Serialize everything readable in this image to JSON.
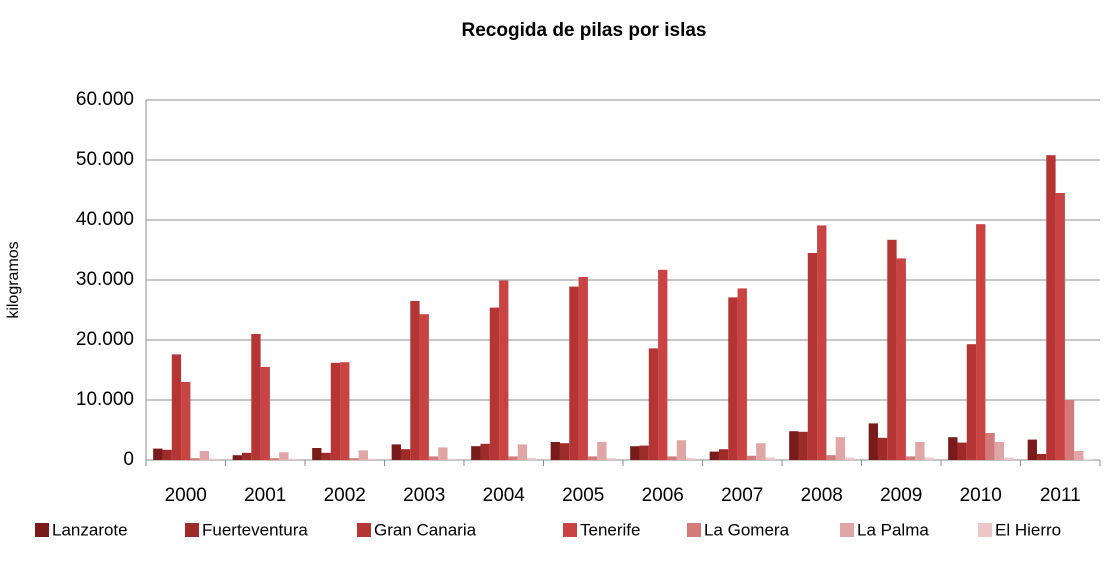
{
  "chart_data": {
    "type": "bar",
    "title": "Recogida de pilas por islas",
    "y_label": "kilogramos",
    "categories": [
      "2000",
      "2001",
      "2002",
      "2003",
      "2004",
      "2005",
      "2006",
      "2007",
      "2008",
      "2009",
      "2010",
      "2011"
    ],
    "series": [
      {
        "name": "Lanzarote",
        "color": "#7a1b1b",
        "values": [
          1900,
          800,
          2000,
          2600,
          2300,
          3000,
          2300,
          1400,
          4800,
          6100,
          3800,
          3400
        ]
      },
      {
        "name": "Fuerteventura",
        "color": "#9e2a2a",
        "values": [
          1700,
          1200,
          1200,
          1800,
          2700,
          2800,
          2400,
          1800,
          4700,
          3700,
          2900,
          1000
        ]
      },
      {
        "name": "Gran Canaria",
        "color": "#b53434",
        "values": [
          17600,
          21000,
          16200,
          26500,
          25400,
          28900,
          18600,
          27100,
          34500,
          36700,
          19300,
          50800
        ]
      },
      {
        "name": "Tenerife",
        "color": "#c94343",
        "values": [
          13000,
          15500,
          16300,
          24300,
          29900,
          30500,
          31700,
          28600,
          39100,
          33600,
          39300,
          44500
        ]
      },
      {
        "name": "La Gomera",
        "color": "#d37b7b",
        "values": [
          300,
          300,
          300,
          600,
          600,
          600,
          600,
          700,
          800,
          600,
          4500,
          10000
        ]
      },
      {
        "name": "La Palma",
        "color": "#e0a6a6",
        "values": [
          1500,
          1300,
          1600,
          2100,
          2600,
          3000,
          3300,
          2800,
          3800,
          3000,
          3000,
          1500
        ]
      },
      {
        "name": "El Hierro",
        "color": "#ecc7c7",
        "values": [
          200,
          200,
          200,
          200,
          300,
          300,
          300,
          400,
          400,
          400,
          400,
          100
        ]
      }
    ],
    "ylim": [
      0,
      60000
    ],
    "yticks": [
      0,
      {
        "value": 10000,
        "label": "10.000"
      },
      {
        "value": 20000,
        "label": "20.000"
      },
      {
        "value": 30000,
        "label": "30.000"
      },
      {
        "value": 40000,
        "label": "40.000"
      },
      {
        "value": 50000,
        "label": "50.000"
      },
      {
        "value": 60000,
        "label": "60.000"
      }
    ],
    "grid": true,
    "legend": "bottom"
  }
}
